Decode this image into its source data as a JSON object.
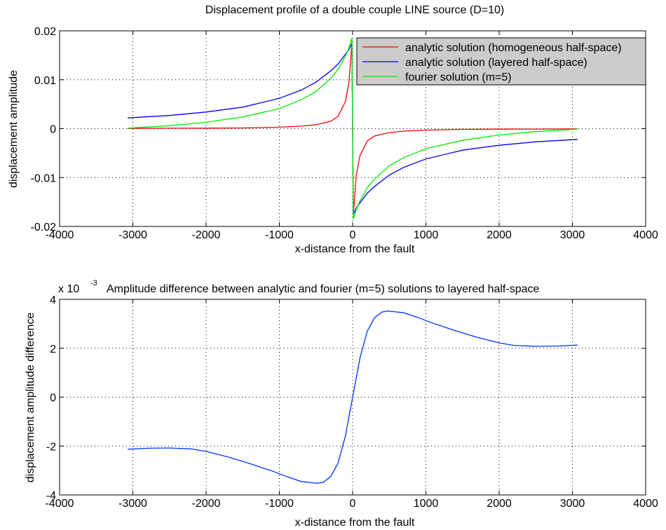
{
  "chart_data": [
    {
      "type": "line",
      "title": "Displacement profile of a double couple LINE source  (D=10)",
      "xlabel": "x-distance from the fault",
      "ylabel": "displacement amplitude",
      "xlim": [
        -4000,
        4000
      ],
      "ylim": [
        -0.02,
        0.02
      ],
      "xticks": [
        -4000,
        -3000,
        -2000,
        -1000,
        0,
        1000,
        2000,
        3000,
        4000
      ],
      "yticks": [
        -0.02,
        -0.01,
        0,
        0.01,
        0.02
      ],
      "xtick_labels": [
        "-4000",
        "-3000",
        "-2000",
        "-1000",
        "0",
        "1000",
        "2000",
        "3000",
        "4000"
      ],
      "ytick_labels": [
        "-0.02",
        "-0.01",
        "0",
        "0.01",
        "0.02"
      ],
      "grid": true,
      "legend": "top-right",
      "series": [
        {
          "name": "analytic solution (homogeneous half-space)",
          "color": "#ff0000",
          "x": [
            -3070,
            -2500,
            -2000,
            -1500,
            -1000,
            -700,
            -500,
            -300,
            -200,
            -100,
            -50,
            -20,
            -10,
            0,
            10,
            20,
            50,
            100,
            200,
            300,
            500,
            700,
            1000,
            1500,
            2000,
            2500,
            3070
          ],
          "y": [
            5e-05,
            8e-05,
            0.0001,
            0.00015,
            0.0003,
            0.0005,
            0.0008,
            0.0015,
            0.0025,
            0.0055,
            0.0095,
            0.0155,
            0.0175,
            0,
            -0.0175,
            -0.0155,
            -0.0095,
            -0.0055,
            -0.0025,
            -0.0015,
            -0.0008,
            -0.0005,
            -0.0003,
            -0.00015,
            -0.0001,
            -8e-05,
            -5e-05
          ]
        },
        {
          "name": "analytic solution (layered half-space)",
          "color": "#0000ff",
          "x": [
            -3070,
            -2500,
            -2000,
            -1500,
            -1000,
            -700,
            -500,
            -300,
            -200,
            -100,
            -50,
            -10,
            0,
            10,
            50,
            100,
            200,
            300,
            500,
            700,
            1000,
            1500,
            2000,
            2500,
            3070
          ],
          "y": [
            0.0022,
            0.0027,
            0.0034,
            0.0044,
            0.0062,
            0.0079,
            0.0095,
            0.0118,
            0.0132,
            0.0152,
            0.0162,
            0.0175,
            0,
            -0.0175,
            -0.0162,
            -0.0152,
            -0.0132,
            -0.0118,
            -0.0095,
            -0.0079,
            -0.0062,
            -0.0044,
            -0.0034,
            -0.0027,
            -0.0022
          ]
        },
        {
          "name": "fourier solution (m=5)",
          "color": "#00ee00",
          "x": [
            -3070,
            -2500,
            -2000,
            -1500,
            -1000,
            -700,
            -500,
            -300,
            -200,
            -100,
            -50,
            -10,
            0,
            10,
            50,
            100,
            200,
            300,
            500,
            700,
            1000,
            1500,
            2000,
            2500,
            3070
          ],
          "y": [
            0.0001,
            0.0006,
            0.0013,
            0.0024,
            0.0041,
            0.0059,
            0.0076,
            0.0103,
            0.0121,
            0.0148,
            0.0165,
            0.0185,
            0,
            -0.0185,
            -0.0165,
            -0.0148,
            -0.0121,
            -0.0103,
            -0.0076,
            -0.0059,
            -0.0041,
            -0.0024,
            -0.0013,
            -0.0006,
            -0.0001
          ]
        }
      ]
    },
    {
      "type": "line",
      "title": "Amplitude difference between analytic and fourier (m=5) solutions to layered half-space",
      "scale_label": "x 10",
      "scale_exponent": "-3",
      "xlabel": "x-distance from the fault",
      "ylabel": "displacement amplitude difference",
      "xlim": [
        -4000,
        4000
      ],
      "ylim": [
        -0.004,
        0.004
      ],
      "xticks": [
        -4000,
        -3000,
        -2000,
        -1000,
        0,
        1000,
        2000,
        3000,
        4000
      ],
      "yticks": [
        -0.004,
        -0.002,
        0,
        0.002,
        0.004
      ],
      "xtick_labels": [
        "-4000",
        "-3000",
        "-2000",
        "-1000",
        "0",
        "1000",
        "2000",
        "3000",
        "4000"
      ],
      "ytick_labels": [
        "-4",
        "-2",
        "0",
        "2",
        "4"
      ],
      "grid": true,
      "series": [
        {
          "color": "#0033ff",
          "x": [
            -3070,
            -2800,
            -2500,
            -2200,
            -2000,
            -1700,
            -1400,
            -1100,
            -900,
            -700,
            -550,
            -480,
            -400,
            -300,
            -200,
            -100,
            0,
            100,
            200,
            300,
            400,
            480,
            550,
            700,
            900,
            1100,
            1400,
            1700,
            2000,
            2200,
            2500,
            2800,
            3070
          ],
          "y": [
            -0.00213,
            -0.00209,
            -0.00208,
            -0.00212,
            -0.00222,
            -0.00245,
            -0.00272,
            -0.00302,
            -0.00325,
            -0.00345,
            -0.0035,
            -0.00352,
            -0.00348,
            -0.00325,
            -0.0027,
            -0.0016,
            0,
            0.0016,
            0.0027,
            0.00325,
            0.00348,
            0.00352,
            0.0035,
            0.00345,
            0.00325,
            0.00302,
            0.00272,
            0.00245,
            0.00222,
            0.00212,
            0.00208,
            0.00209,
            0.00213
          ]
        }
      ]
    }
  ]
}
